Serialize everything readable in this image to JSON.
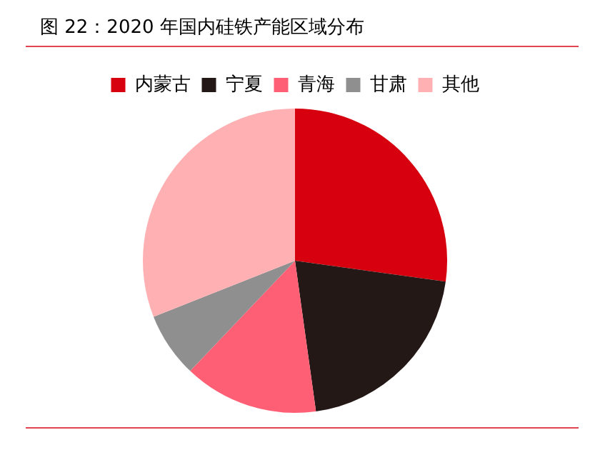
{
  "chart_data": {
    "type": "pie",
    "title": "图 22：2020 年国内硅铁产能区域分布",
    "categories": [
      "内蒙古",
      "宁夏",
      "青海",
      "甘肃",
      "其他"
    ],
    "values": [
      27.2,
      20.6,
      14.3,
      6.9,
      31.0
    ],
    "colors": [
      "#d7000f",
      "#231815",
      "#ff5f75",
      "#8f8f8f",
      "#ffb0b3"
    ],
    "legend": "top"
  }
}
